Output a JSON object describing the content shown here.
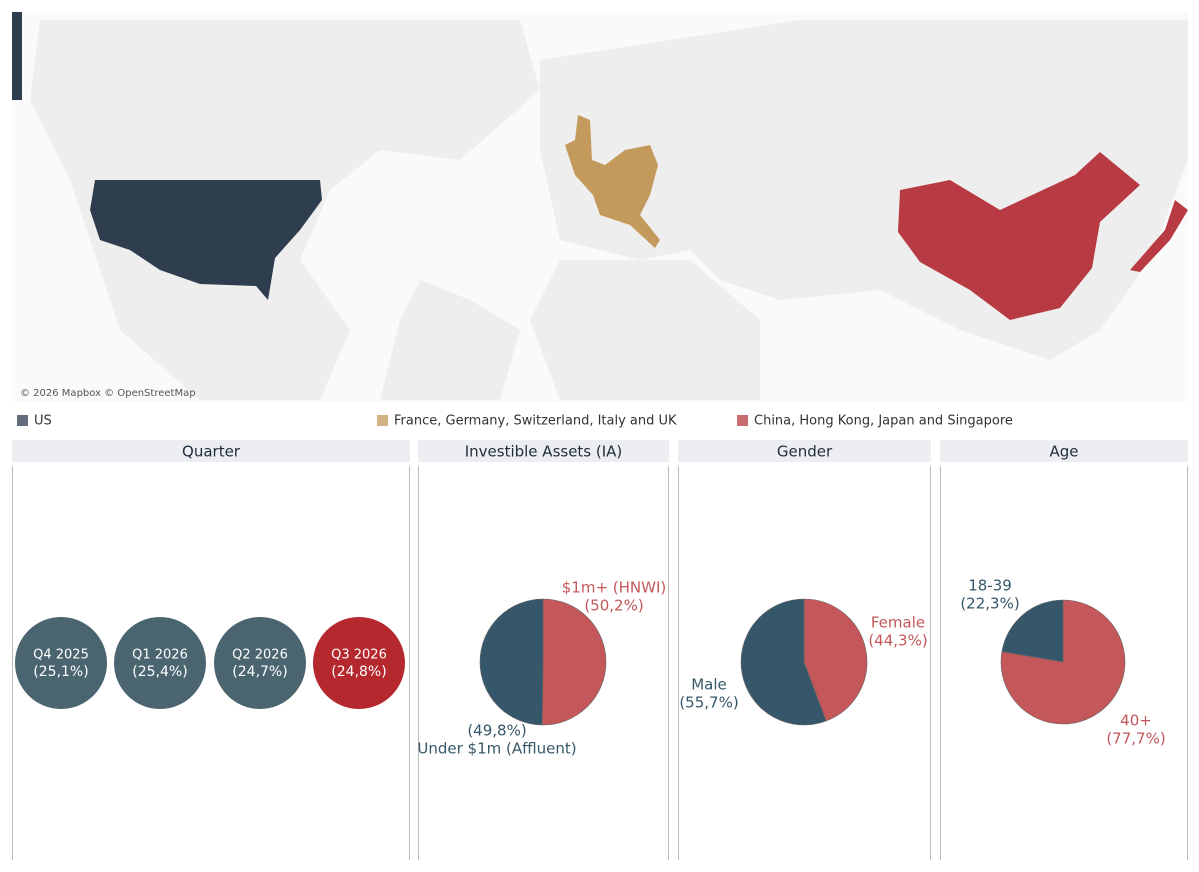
{
  "map": {
    "attribution": "© 2026 Mapbox © OpenStreetMap",
    "legend": [
      {
        "label": "US",
        "color": "#2e3e4f"
      },
      {
        "label": "France, Germany, Switzerland, Italy and UK",
        "color": "#c49a5c"
      },
      {
        "label": "China, Hong Kong, Japan and Singapore",
        "color": "#b83a42"
      }
    ]
  },
  "chart_data": [
    {
      "type": "circle",
      "title": "Quarter",
      "categories": [
        "Q4 2025",
        "Q1 2026",
        "Q2 2026",
        "Q3 2026"
      ],
      "values": [
        25.1,
        25.4,
        24.7,
        24.8
      ],
      "value_labels": [
        "(25,1%)",
        "(25,4%)",
        "(24,7%)",
        "(24,8%)"
      ],
      "colors": [
        "#4a6470",
        "#4a6470",
        "#4a6470",
        "#b5282e"
      ]
    },
    {
      "type": "pie",
      "title": "Investible Assets (IA)",
      "categories": [
        "$1m+ (HNWI)",
        "Under $1m (Affluent)"
      ],
      "values": [
        50.2,
        49.8
      ],
      "value_labels": [
        "(50,2%)",
        "(49,8%)"
      ],
      "colors": [
        "#c4575a",
        "#36576a"
      ]
    },
    {
      "type": "pie",
      "title": "Gender",
      "categories": [
        "Female",
        "Male"
      ],
      "values": [
        44.3,
        55.7
      ],
      "value_labels": [
        "(44,3%)",
        "(55,7%)"
      ],
      "colors": [
        "#c4575a",
        "#36576a"
      ]
    },
    {
      "type": "pie",
      "title": "Age",
      "categories": [
        "40+",
        "18-39"
      ],
      "values": [
        77.7,
        22.3
      ],
      "value_labels": [
        "(77,7%)",
        "(22,3%)"
      ],
      "colors": [
        "#c4575a",
        "#36576a"
      ]
    }
  ]
}
